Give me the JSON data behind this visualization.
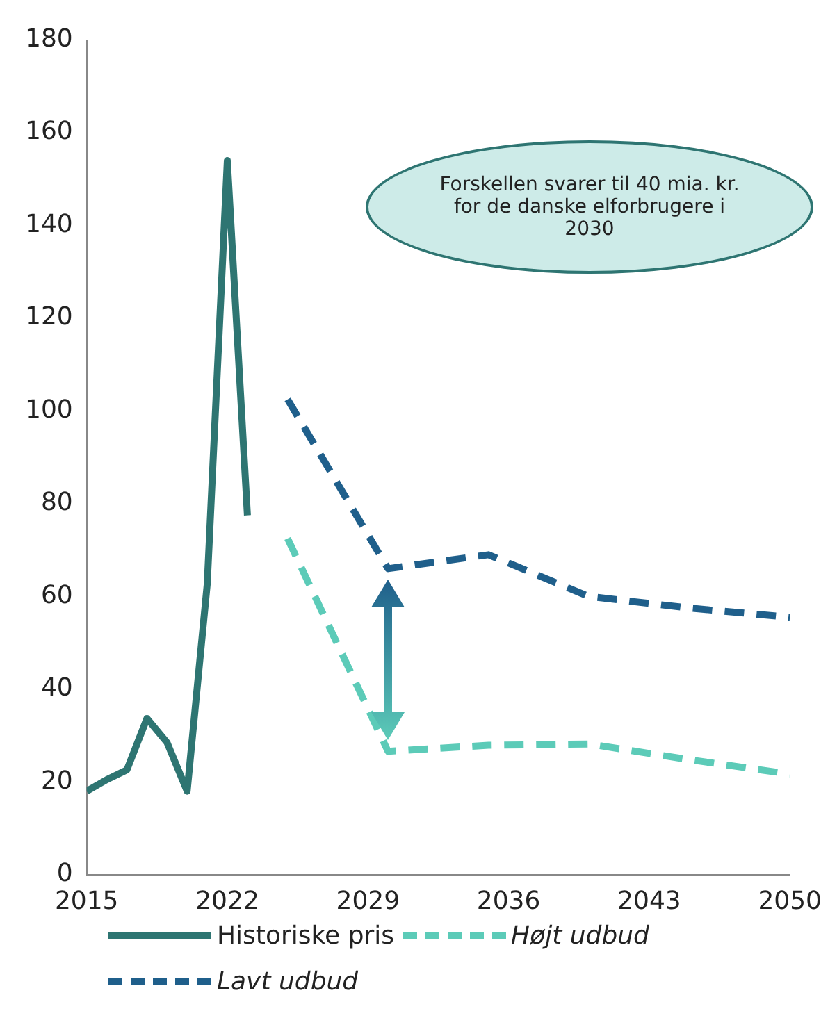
{
  "chart_data": {
    "type": "line",
    "xlim": [
      2015,
      2050
    ],
    "xticks": [
      2015,
      2022,
      2029,
      2036,
      2043,
      2050
    ],
    "ylim": [
      0,
      180
    ],
    "yticks": [
      0,
      20,
      40,
      60,
      80,
      100,
      120,
      140,
      160,
      180
    ],
    "grid": false,
    "legend": "bottom",
    "marker": "none",
    "series": [
      {
        "name": "Historiske pris",
        "color": "#2e7572",
        "line_style": "solid",
        "x": [
          2015,
          2016,
          2017,
          2018,
          2019,
          2020,
          2021,
          2022,
          2023
        ],
        "values": [
          18,
          20.5,
          22.6,
          33.7,
          28.5,
          18,
          62.7,
          154,
          77.5
        ]
      },
      {
        "name": "Højt udbud",
        "color": "#5ccbb8",
        "line_style": "dashed",
        "x": [
          2025,
          2030,
          2035,
          2040,
          2045,
          2050
        ],
        "values": [
          72.5,
          26.6,
          27.9,
          28.2,
          24.8,
          21.7
        ]
      },
      {
        "name": "Lavt udbud",
        "color": "#1f5f8b",
        "line_style": "dashed",
        "x": [
          2025,
          2030,
          2035,
          2040,
          2045,
          2050
        ],
        "values": [
          102.5,
          66,
          69,
          60,
          57.5,
          55.5
        ]
      }
    ],
    "annotations": [
      "Forskellen svarer til 40 mia. kr. for de danske elforbrugere i 2030"
    ]
  }
}
